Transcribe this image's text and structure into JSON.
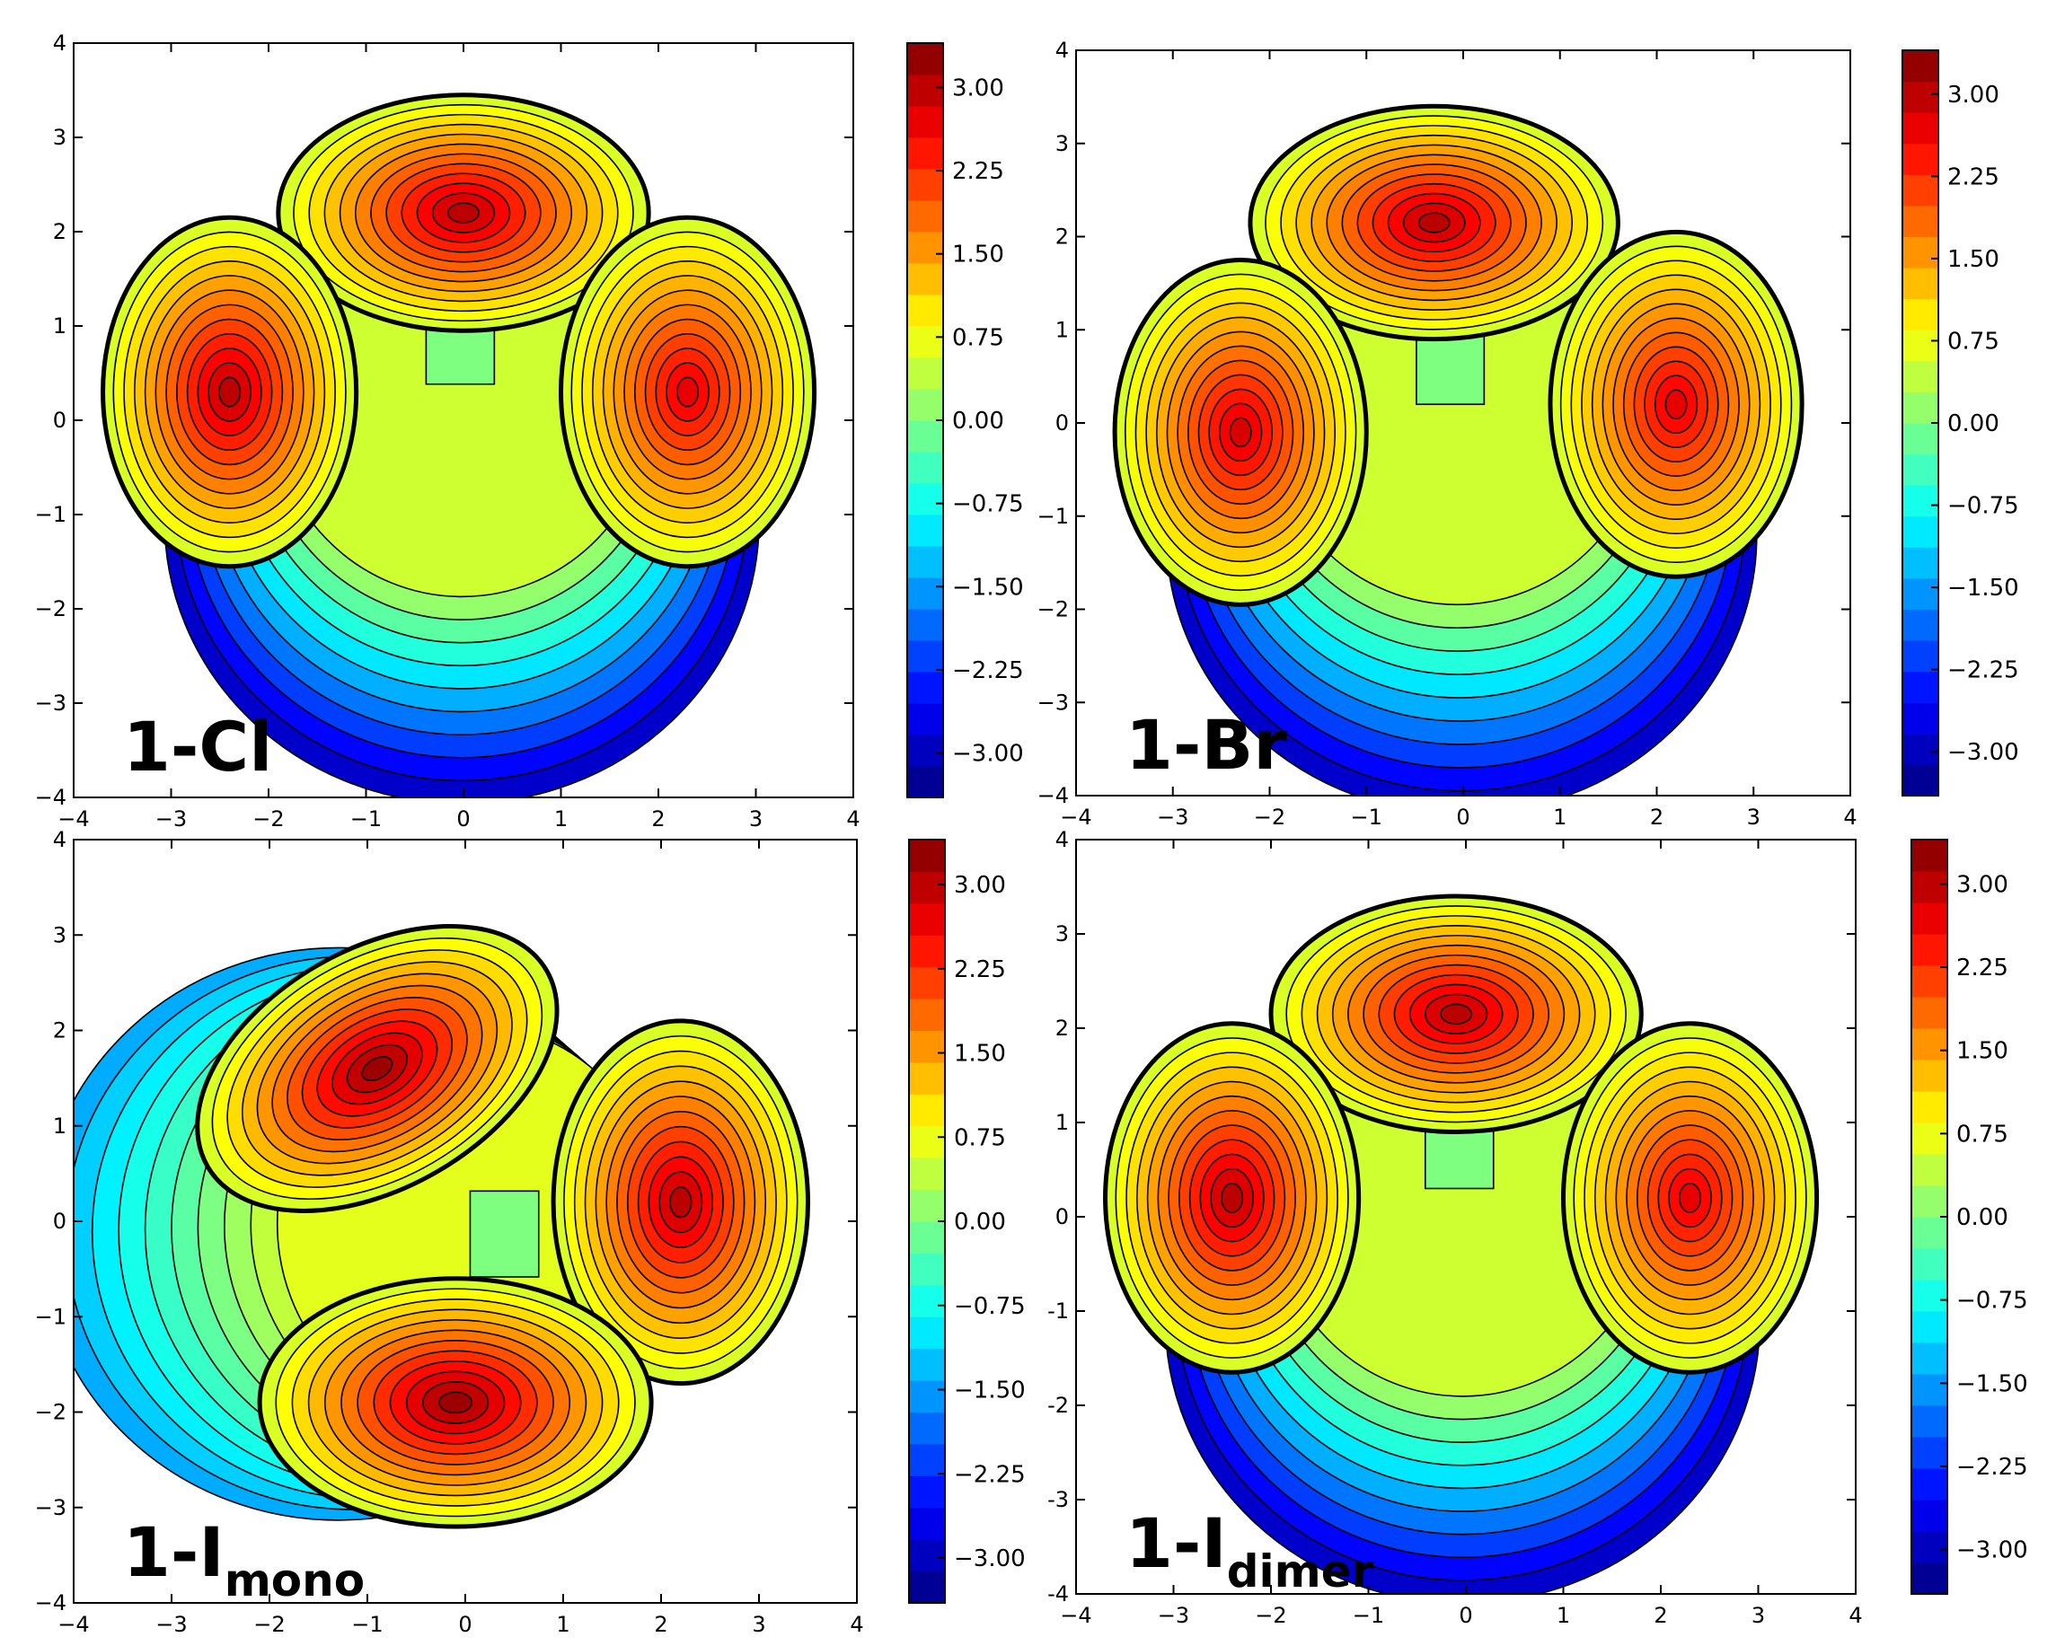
{
  "chart_data": [
    {
      "type": "contour",
      "label": "1-Cl",
      "label_sub": "",
      "xlim": [
        -4,
        4
      ],
      "ylim": [
        -4,
        4
      ],
      "x_ticks": [
        "−4",
        "−3",
        "−2",
        "−1",
        "0",
        "1",
        "2",
        "3",
        "4"
      ],
      "y_ticks": [
        "−4",
        "−3",
        "−2",
        "−1",
        "0",
        "1",
        "2",
        "3",
        "4"
      ],
      "colorbar_range": [
        -3.4,
        3.4
      ],
      "colorbar_ticks": [
        "3.00",
        "2.25",
        "1.50",
        "0.75",
        "0.00",
        "−0.75",
        "−1.50",
        "−2.25",
        "−3.00"
      ],
      "lobes": [
        {
          "cx": 0.0,
          "cy": 2.2,
          "rx": 1.9,
          "ry": 1.25,
          "rot": 0,
          "peak": 3.0
        },
        {
          "cx": -2.4,
          "cy": 0.3,
          "rx": 1.3,
          "ry": 1.85,
          "rot": 0,
          "peak": 3.0
        },
        {
          "cx": 2.3,
          "cy": 0.3,
          "rx": 1.3,
          "ry": 1.85,
          "rot": 0,
          "peak": 2.7
        }
      ],
      "hole": {
        "cx": 0.0,
        "cy": -2.4,
        "peak": -2.9
      }
    },
    {
      "type": "contour",
      "label": "1-Br",
      "label_sub": "",
      "xlim": [
        -4,
        4
      ],
      "ylim": [
        -4,
        4
      ],
      "x_ticks": [
        "−4",
        "−3",
        "−2",
        "−1",
        "0",
        "1",
        "2",
        "3",
        "4"
      ],
      "y_ticks": [
        "−4",
        "−3",
        "−2",
        "−1",
        "0",
        "1",
        "2",
        "3",
        "4"
      ],
      "colorbar_range": [
        -3.4,
        3.4
      ],
      "colorbar_ticks": [
        "3.00",
        "2.25",
        "1.50",
        "0.75",
        "0.00",
        "−0.75",
        "−1.50",
        "−2.25",
        "−3.00"
      ],
      "lobes": [
        {
          "cx": -0.3,
          "cy": 2.15,
          "rx": 1.9,
          "ry": 1.25,
          "rot": 0,
          "peak": 3.0
        },
        {
          "cx": -2.3,
          "cy": -0.1,
          "rx": 1.3,
          "ry": 1.85,
          "rot": 0,
          "peak": 2.8
        },
        {
          "cx": 2.2,
          "cy": 0.2,
          "rx": 1.3,
          "ry": 1.85,
          "rot": 0,
          "peak": 2.7
        }
      ],
      "hole": {
        "cx": 0.1,
        "cy": -2.5,
        "peak": -2.9
      }
    },
    {
      "type": "contour",
      "label": "1-I",
      "label_sub": "mono",
      "xlim": [
        -4,
        4
      ],
      "ylim": [
        -4,
        4
      ],
      "x_ticks": [
        "−4",
        "−3",
        "−2",
        "−1",
        "0",
        "1",
        "2",
        "3",
        "4"
      ],
      "y_ticks": [
        "−4",
        "−3",
        "−2",
        "−1",
        "0",
        "1",
        "2",
        "3",
        "4"
      ],
      "colorbar_range": [
        -3.4,
        3.4
      ],
      "colorbar_ticks": [
        "3.00",
        "2.25",
        "1.50",
        "0.75",
        "0.00",
        "−0.75",
        "−1.50",
        "−2.25",
        "−3.00"
      ],
      "lobes": [
        {
          "cx": -0.9,
          "cy": 1.6,
          "rx": 2.0,
          "ry": 1.25,
          "rot": -30,
          "peak": 3.2
        },
        {
          "cx": 2.2,
          "cy": 0.2,
          "rx": 1.3,
          "ry": 1.9,
          "rot": 0,
          "peak": 3.0
        },
        {
          "cx": -0.1,
          "cy": -1.9,
          "rx": 2.0,
          "ry": 1.3,
          "rot": 0,
          "peak": 3.2
        }
      ],
      "hole": {
        "cx": -3.0,
        "cy": -0.2,
        "peak": -1.4
      }
    },
    {
      "type": "contour",
      "label": "1-I",
      "label_sub": "dimer",
      "xlim": [
        -4,
        4
      ],
      "ylim": [
        -4,
        4
      ],
      "x_ticks": [
        "−4",
        "−3",
        "−2",
        "−1",
        "0",
        "1",
        "2",
        "3",
        "4"
      ],
      "y_ticks": [
        "4",
        "3",
        "2",
        "1",
        "0",
        "-1",
        "-2",
        "-3",
        "-4"
      ],
      "colorbar_range": [
        -3.4,
        3.4
      ],
      "colorbar_ticks": [
        "3.00",
        "2.25",
        "1.50",
        "0.75",
        "0.00",
        "−0.75",
        "−1.50",
        "−2.25",
        "−3.00"
      ],
      "lobes": [
        {
          "cx": -0.1,
          "cy": 2.15,
          "rx": 1.9,
          "ry": 1.25,
          "rot": 0,
          "peak": 3.0
        },
        {
          "cx": -2.4,
          "cy": 0.2,
          "rx": 1.3,
          "ry": 1.85,
          "rot": 0,
          "peak": 3.0
        },
        {
          "cx": 2.3,
          "cy": 0.2,
          "rx": 1.3,
          "ry": 1.85,
          "rot": 0,
          "peak": 2.7
        }
      ],
      "hole": {
        "cx": 0.0,
        "cy": -2.4,
        "peak": -2.9
      }
    }
  ],
  "colors": {
    "axis": "#000000",
    "background": "#ffffff",
    "colormap": [
      "#00007f",
      "#0000ff",
      "#007fff",
      "#00ffff",
      "#7fff7f",
      "#ffff00",
      "#ff7f00",
      "#ff0000",
      "#7f0000"
    ]
  }
}
